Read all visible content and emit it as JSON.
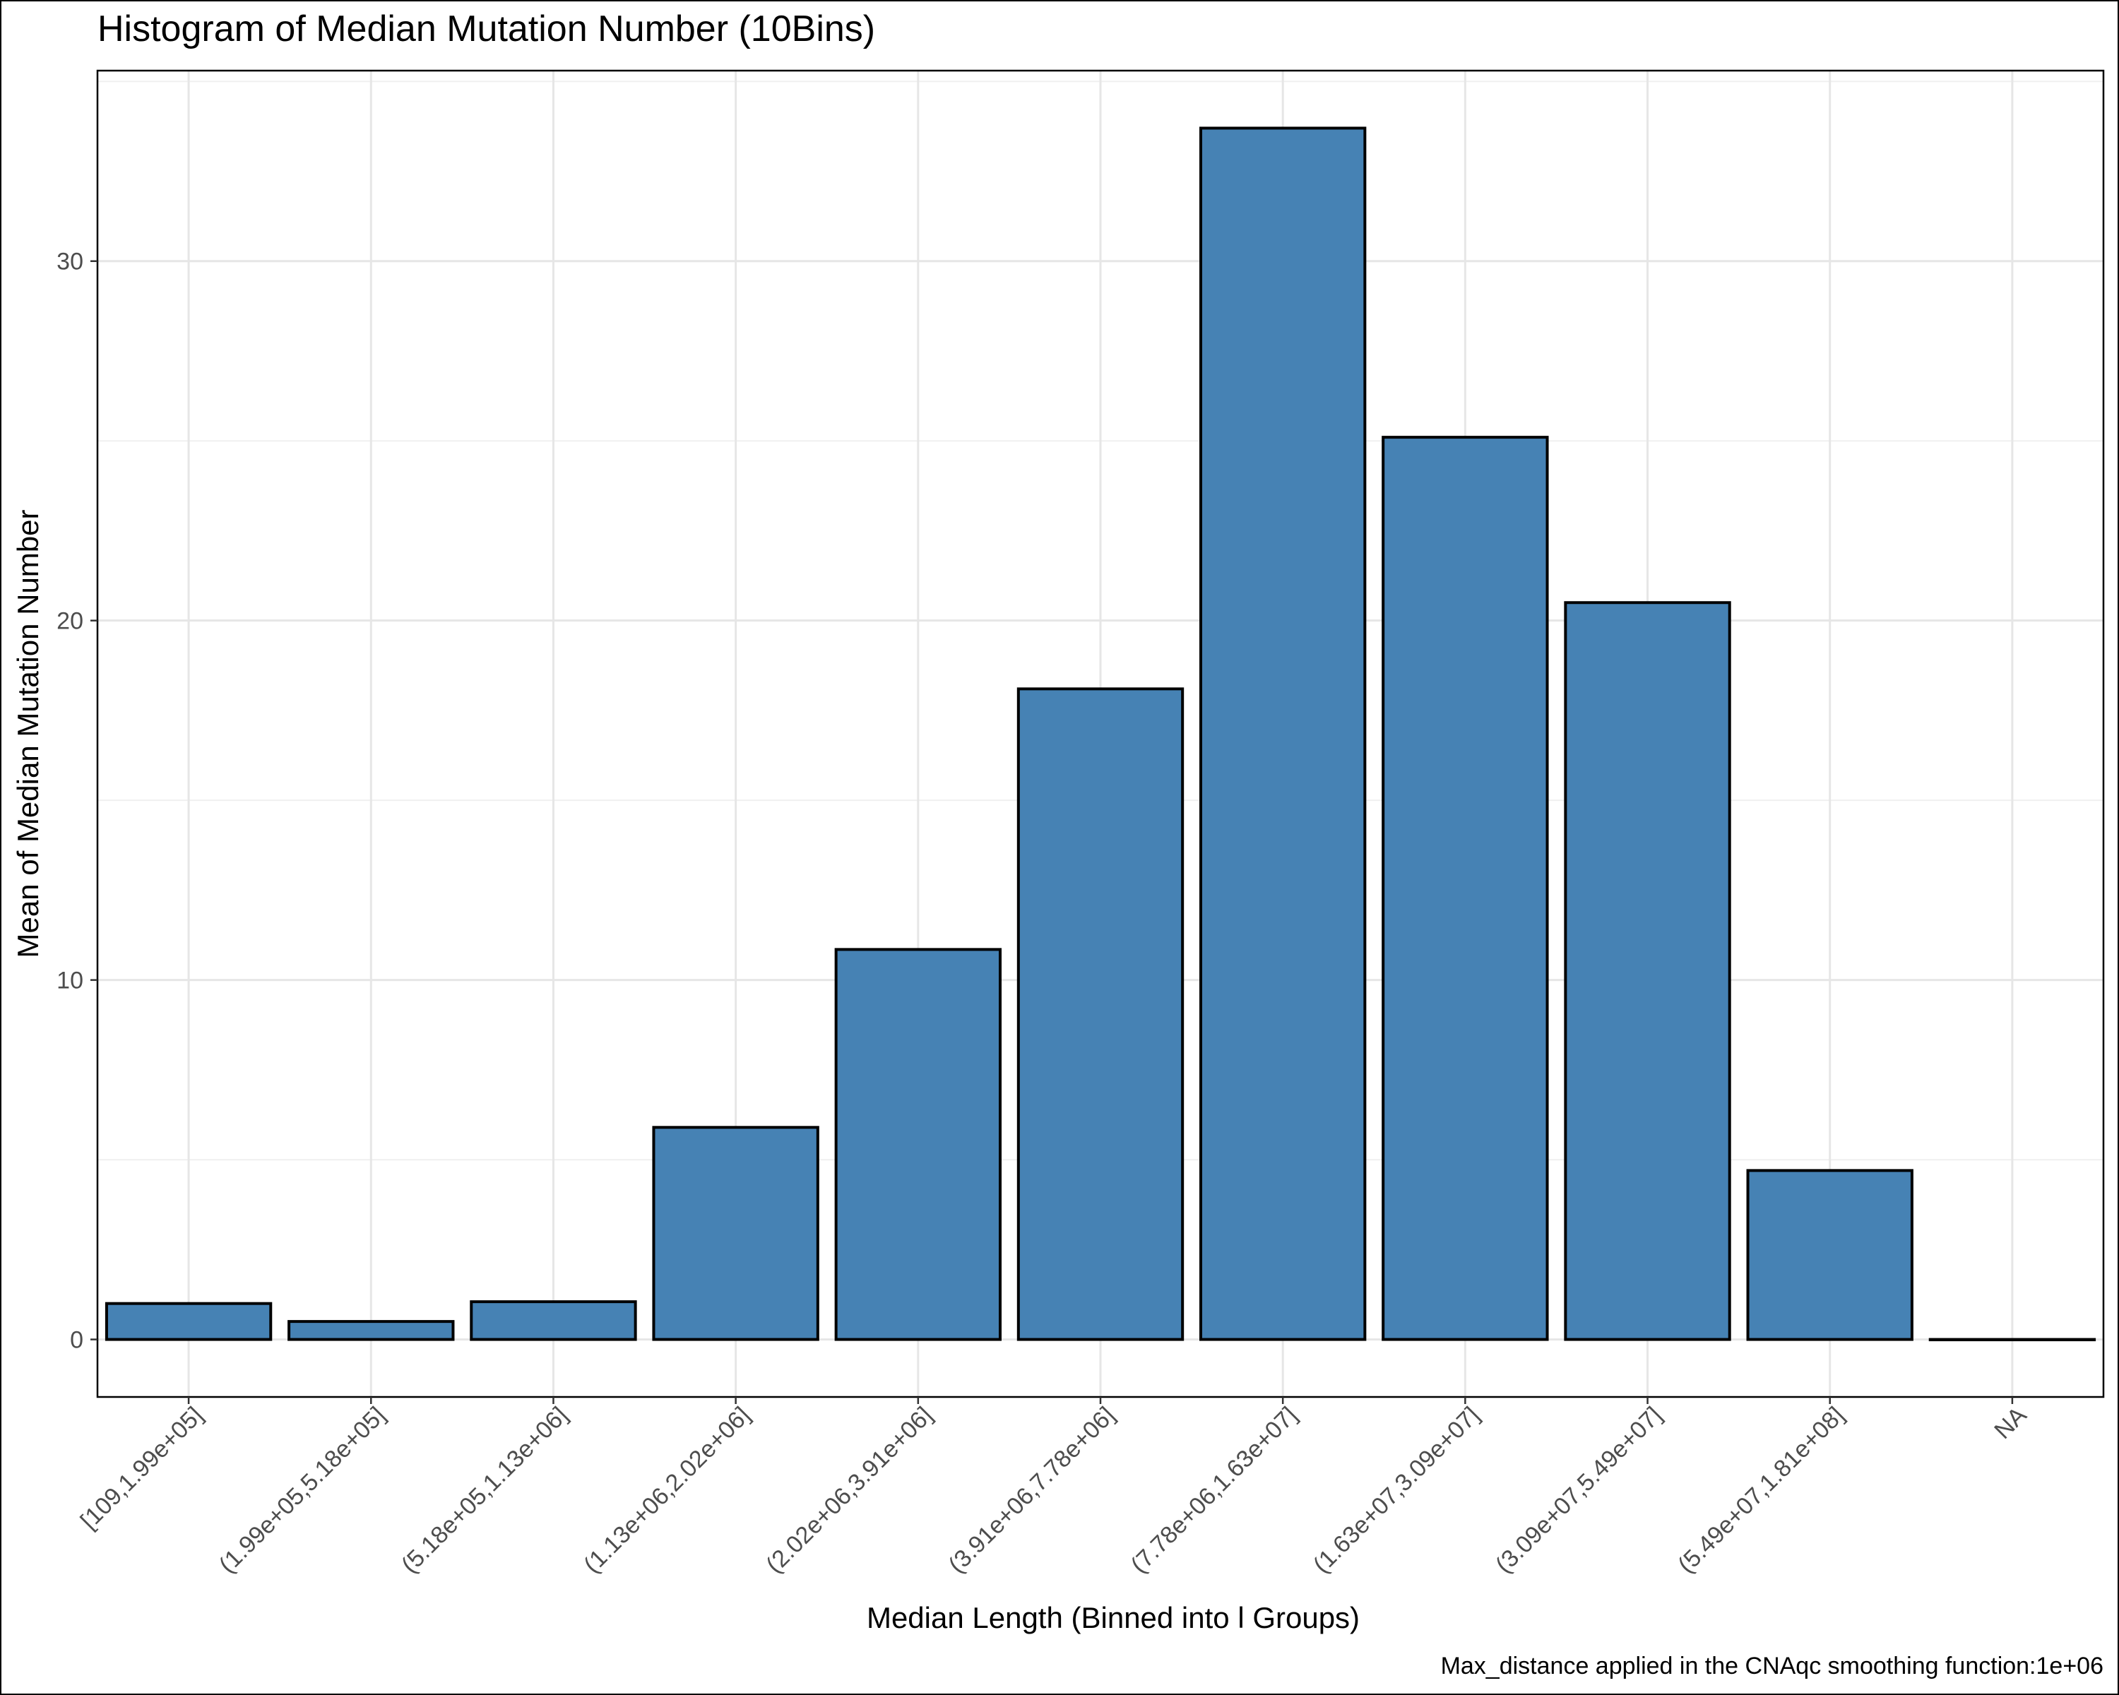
{
  "chart_data": {
    "type": "bar",
    "title": "Histogram of Median Mutation Number (10Bins)",
    "xlabel": "Median Length (Binned into l Groups)",
    "ylabel": "Mean of Median Mutation Number",
    "caption": "Max_distance applied in the CNAqc smoothing function:1e+06",
    "categories": [
      "[109,1.99e+05]",
      "(1.99e+05,5.18e+05]",
      "(5.18e+05,1.13e+06]",
      "(1.13e+06,2.02e+06]",
      "(2.02e+06,3.91e+06]",
      "(3.91e+06,7.78e+06]",
      "(7.78e+06,1.63e+07]",
      "(1.63e+07,3.09e+07]",
      "(3.09e+07,5.49e+07]",
      "(5.49e+07,1.81e+08]",
      "NA"
    ],
    "values": [
      1.0,
      0.5,
      1.05,
      5.9,
      10.85,
      18.1,
      33.7,
      25.1,
      20.5,
      4.7,
      0.0
    ],
    "yticks": [
      0,
      10,
      20,
      30
    ],
    "ylim": [
      -1.6,
      35.3
    ],
    "grid": true,
    "legend": "none",
    "bar_color": "#4682B4",
    "bar_outline": "#000000"
  }
}
